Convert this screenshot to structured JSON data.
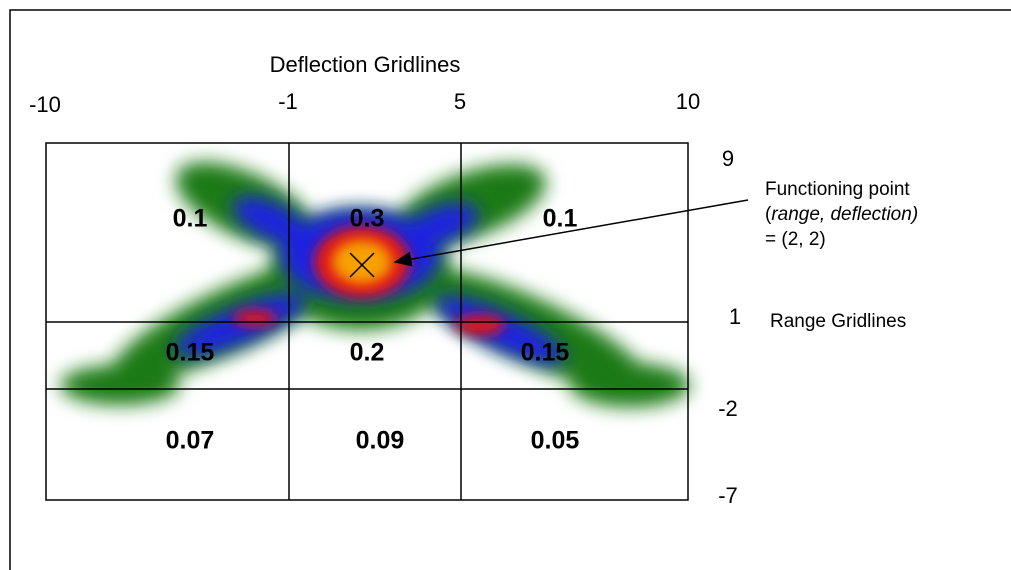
{
  "diagram": {
    "title": "Deflection Gridlines",
    "deflection_gridlines": [
      "-10",
      "-1",
      "5",
      "10"
    ],
    "range_gridlines": [
      "9",
      "1",
      "-2",
      "-7"
    ],
    "range_label": "Range Gridlines",
    "functioning_point": {
      "title": "Functioning point",
      "open": "(",
      "coords": "range, deflection)",
      "value": "= (2, 2)"
    },
    "cells": [
      [
        "0.1",
        "0.3",
        "0.1"
      ],
      [
        "0.15",
        "0.2",
        "0.15"
      ],
      [
        "0.07",
        "0.09",
        "0.05"
      ]
    ]
  }
}
